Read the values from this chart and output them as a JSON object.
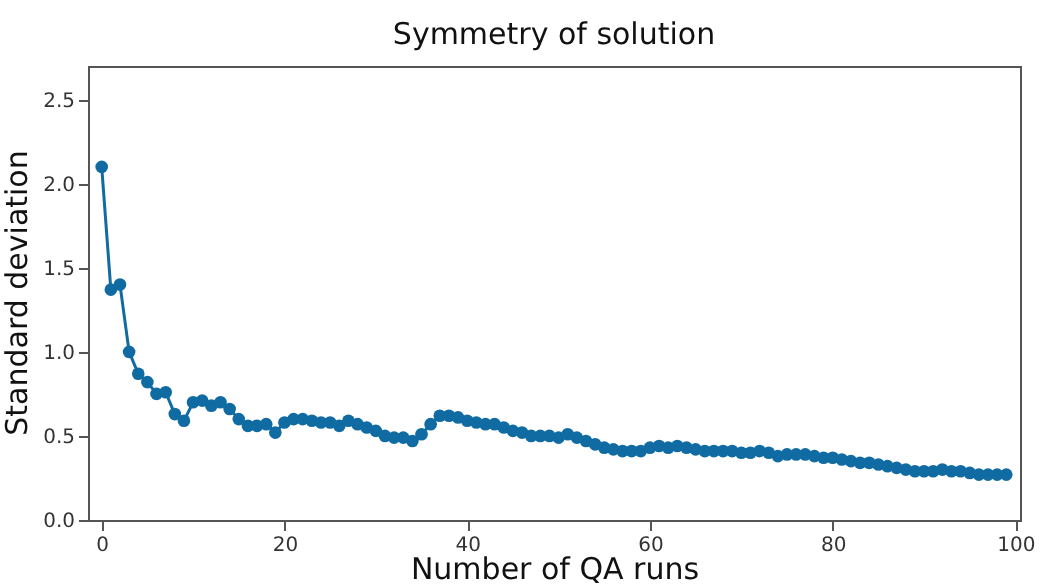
{
  "chart_data": {
    "type": "line",
    "title": "Symmetry of solution",
    "xlabel": "Number of QA runs",
    "ylabel": "Standard deviation",
    "x": [
      0,
      1,
      2,
      3,
      4,
      5,
      6,
      7,
      8,
      9,
      10,
      11,
      12,
      13,
      14,
      15,
      16,
      17,
      18,
      19,
      20,
      21,
      22,
      23,
      24,
      25,
      26,
      27,
      28,
      29,
      30,
      31,
      32,
      33,
      34,
      35,
      36,
      37,
      38,
      39,
      40,
      41,
      42,
      43,
      44,
      45,
      46,
      47,
      48,
      49,
      50,
      51,
      52,
      53,
      54,
      55,
      56,
      57,
      58,
      59,
      60,
      61,
      62,
      63,
      64,
      65,
      66,
      67,
      68,
      69,
      70,
      71,
      72,
      73,
      74,
      75,
      76,
      77,
      78,
      79,
      80,
      81,
      82,
      83,
      84,
      85,
      86,
      87,
      88,
      89,
      90,
      91,
      92,
      93,
      94,
      95,
      96,
      97,
      98,
      99
    ],
    "series": [
      {
        "color": "#106ba3",
        "values": [
          2.1,
          1.37,
          1.4,
          1.0,
          0.87,
          0.82,
          0.75,
          0.76,
          0.63,
          0.59,
          0.7,
          0.71,
          0.68,
          0.7,
          0.66,
          0.6,
          0.56,
          0.56,
          0.57,
          0.52,
          0.58,
          0.6,
          0.6,
          0.59,
          0.58,
          0.58,
          0.56,
          0.59,
          0.57,
          0.55,
          0.53,
          0.5,
          0.49,
          0.49,
          0.47,
          0.51,
          0.57,
          0.62,
          0.62,
          0.61,
          0.59,
          0.58,
          0.57,
          0.57,
          0.55,
          0.53,
          0.52,
          0.5,
          0.5,
          0.5,
          0.49,
          0.51,
          0.49,
          0.47,
          0.45,
          0.43,
          0.42,
          0.41,
          0.41,
          0.41,
          0.43,
          0.44,
          0.43,
          0.44,
          0.43,
          0.42,
          0.41,
          0.41,
          0.41,
          0.41,
          0.4,
          0.4,
          0.41,
          0.4,
          0.38,
          0.39,
          0.39,
          0.39,
          0.38,
          0.37,
          0.37,
          0.36,
          0.35,
          0.34,
          0.34,
          0.33,
          0.32,
          0.31,
          0.3,
          0.29,
          0.29,
          0.29,
          0.3,
          0.29,
          0.29,
          0.28,
          0.27,
          0.27,
          0.27,
          0.27
        ]
      }
    ],
    "xlim": [
      -1.5,
      100.5
    ],
    "xticks": [
      0,
      20,
      40,
      60,
      80,
      100
    ],
    "ylim": [
      0,
      2.7
    ],
    "yticks": [
      {
        "value": 0,
        "label": "0.0"
      },
      {
        "value": 0.5,
        "label": "0.5"
      },
      {
        "value": 1,
        "label": "1.0"
      },
      {
        "value": 1.5,
        "label": "1.5"
      },
      {
        "value": 2,
        "label": "2.0"
      },
      {
        "value": 2.5,
        "label": "2.5"
      }
    ],
    "marker": "circle",
    "line_style": "solid",
    "grid": false
  }
}
